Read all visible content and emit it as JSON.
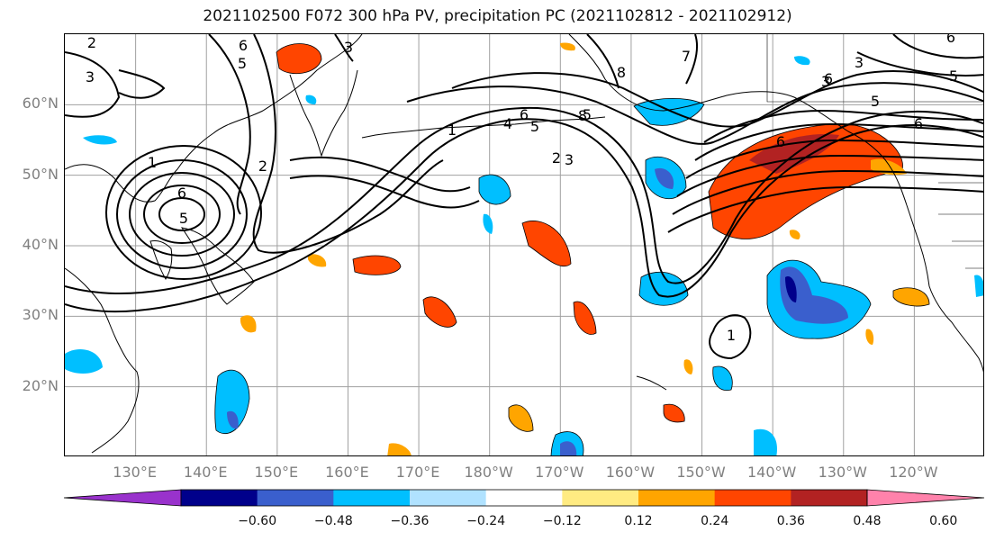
{
  "title": "2021102500 F072 300 hPa PV, precipitation PC (2021102812 - 2021102912)",
  "map": {
    "lat_ticks": [
      {
        "label": "60°N",
        "lat": 60
      },
      {
        "label": "50°N",
        "lat": 50
      },
      {
        "label": "40°N",
        "lat": 40
      },
      {
        "label": "30°N",
        "lat": 30
      },
      {
        "label": "20°N",
        "lat": 20
      }
    ],
    "lon_ticks": [
      {
        "label": "130°E",
        "lon": 130
      },
      {
        "label": "140°E",
        "lon": 140
      },
      {
        "label": "150°E",
        "lon": 150
      },
      {
        "label": "160°E",
        "lon": 160
      },
      {
        "label": "170°E",
        "lon": 170
      },
      {
        "label": "180°W",
        "lon": 180
      },
      {
        "label": "170°W",
        "lon": 190
      },
      {
        "label": "160°W",
        "lon": 200
      },
      {
        "label": "150°W",
        "lon": 210
      },
      {
        "label": "140°W",
        "lon": 220
      },
      {
        "label": "130°W",
        "lon": 230
      },
      {
        "label": "120°W",
        "lon": 240
      }
    ],
    "extent": {
      "lon_min": 120,
      "lon_max": 250,
      "lat_min": 10,
      "lat_max": 70
    },
    "contour_labels": [
      "2",
      "6",
      "5",
      "3",
      "3",
      "1",
      "2",
      "6",
      "5",
      "7",
      "8",
      "5",
      "1",
      "4",
      "6",
      "5",
      "2",
      "3",
      "6",
      "8",
      "6",
      "5",
      "3",
      "5",
      "6",
      "6",
      "3",
      "1"
    ]
  },
  "colorbar": {
    "colors": [
      "#9932cc",
      "#00008b",
      "#3a5fcd",
      "#00bfff",
      "#b0e2ff",
      "#ffffff",
      "#ffeb82",
      "#ffa500",
      "#ff4500",
      "#b22222",
      "#ff82ab"
    ],
    "tick_labels": [
      "−0.60",
      "−0.48",
      "−0.36",
      "−0.24",
      "−0.12",
      "0.12",
      "0.24",
      "0.36",
      "0.48",
      "0.60"
    ]
  },
  "legend": {
    "negative_colors": [
      "#00008b",
      "#3a5fcd",
      "#00bfff"
    ],
    "positive_colors": [
      "#ffa500",
      "#ff4500",
      "#b22222"
    ]
  }
}
